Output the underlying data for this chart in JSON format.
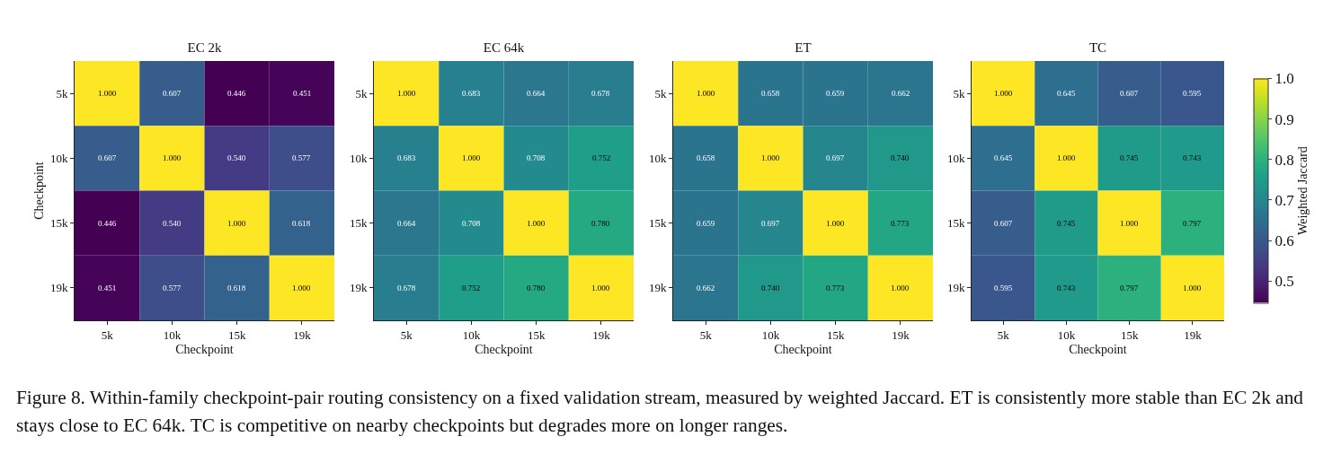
{
  "chart_data": [
    {
      "type": "heatmap",
      "title": "EC 2k",
      "xlabel": "Checkpoint",
      "ylabel": "Checkpoint",
      "categories": [
        "5k",
        "10k",
        "15k",
        "19k"
      ],
      "y_categories": [
        "5k",
        "10k",
        "15k",
        "19k"
      ],
      "cells": [
        [
          1.0,
          0.607,
          0.446,
          0.451
        ],
        [
          0.607,
          1.0,
          0.54,
          0.577
        ],
        [
          0.446,
          0.54,
          1.0,
          0.618
        ],
        [
          0.451,
          0.577,
          0.618,
          1.0
        ]
      ],
      "cell_labels": [
        [
          "1.000",
          "0.607",
          "0.446",
          "0.451"
        ],
        [
          "0.607",
          "1.000",
          "0.540",
          "0.577"
        ],
        [
          "0.446",
          "0.540",
          "1.000",
          "0.618"
        ],
        [
          "0.451",
          "0.577",
          "0.618",
          "1.000"
        ]
      ],
      "annotations": [
        "Figure 8. Within-family checkpoint-pair routing consistency on a fixed validation stream, measured by weighted Jaccard. ET is consistently more stable than EC 2k and stays close to EC 64k. TC is competitive on nearby checkpoints but degrades more on longer ranges."
      ]
    },
    {
      "type": "heatmap",
      "title": "EC 64k",
      "xlabel": "Checkpoint",
      "categories": [
        "5k",
        "10k",
        "15k",
        "19k"
      ],
      "y_categories": [
        "5k",
        "10k",
        "15k",
        "19k"
      ],
      "cells": [
        [
          1.0,
          0.683,
          0.664,
          0.678
        ],
        [
          0.683,
          1.0,
          0.708,
          0.752
        ],
        [
          0.664,
          0.708,
          1.0,
          0.78
        ],
        [
          0.678,
          0.752,
          0.78,
          1.0
        ]
      ],
      "cell_labels": [
        [
          "1.000",
          "0.683",
          "0.664",
          "0.678"
        ],
        [
          "0.683",
          "1.000",
          "0.708",
          "0.752"
        ],
        [
          "0.664",
          "0.708",
          "1.000",
          "0.780"
        ],
        [
          "0.678",
          "0.752",
          "0.780",
          "1.000"
        ]
      ]
    },
    {
      "type": "heatmap",
      "title": "ET",
      "xlabel": "Checkpoint",
      "categories": [
        "5k",
        "10k",
        "15k",
        "19k"
      ],
      "y_categories": [
        "5k",
        "10k",
        "15k",
        "19k"
      ],
      "cells": [
        [
          1.0,
          0.658,
          0.659,
          0.662
        ],
        [
          0.658,
          1.0,
          0.697,
          0.74
        ],
        [
          0.659,
          0.697,
          1.0,
          0.773
        ],
        [
          0.662,
          0.74,
          0.773,
          1.0
        ]
      ],
      "cell_labels": [
        [
          "1.000",
          "0.658",
          "0.659",
          "0.662"
        ],
        [
          "0.658",
          "1.000",
          "0.697",
          "0.740"
        ],
        [
          "0.659",
          "0.697",
          "1.000",
          "0.773"
        ],
        [
          "0.662",
          "0.740",
          "0.773",
          "1.000"
        ]
      ]
    },
    {
      "type": "heatmap",
      "title": "TC",
      "xlabel": "Checkpoint",
      "categories": [
        "5k",
        "10k",
        "15k",
        "19k"
      ],
      "y_categories": [
        "5k",
        "10k",
        "15k",
        "19k"
      ],
      "cells": [
        [
          1.0,
          0.645,
          0.607,
          0.595
        ],
        [
          0.645,
          1.0,
          0.745,
          0.743
        ],
        [
          0.607,
          0.745,
          1.0,
          0.797
        ],
        [
          0.595,
          0.743,
          0.797,
          1.0
        ]
      ],
      "cell_labels": [
        [
          "1.000",
          "0.645",
          "0.607",
          "0.595"
        ],
        [
          "0.645",
          "1.000",
          "0.745",
          "0.743"
        ],
        [
          "0.607",
          "0.745",
          "1.000",
          "0.797"
        ],
        [
          "0.595",
          "0.743",
          "0.797",
          "1.000"
        ]
      ],
      "clim": [
        0.446,
        1.0
      ],
      "cticks": [
        0.5,
        0.6,
        0.7,
        0.8,
        0.9,
        {
          "value": 1.0,
          "label": "1.0"
        }
      ],
      "clabel": "Weighted Jaccard"
    }
  ]
}
